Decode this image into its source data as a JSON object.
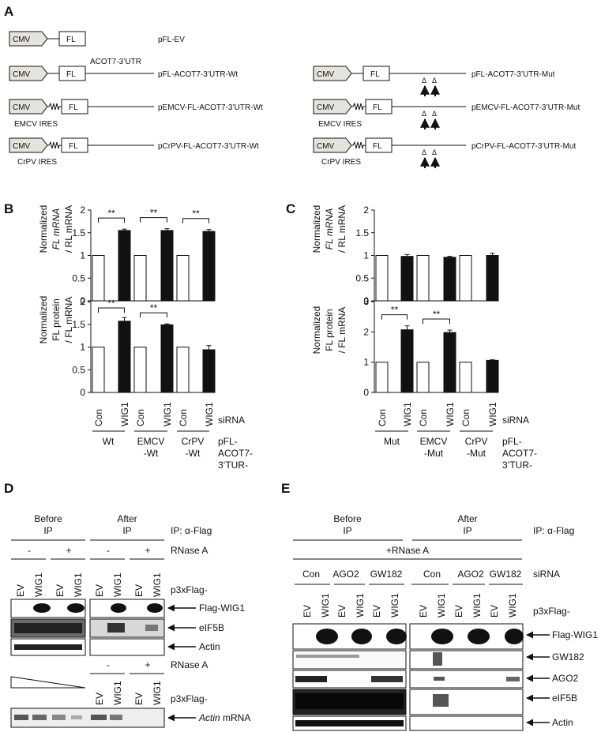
{
  "panel_labels": {
    "a": "A",
    "b": "B",
    "c": "C",
    "d": "D",
    "e": "E"
  },
  "panel_a": {
    "cmv": "CMV",
    "fl": "FL",
    "utr_label": "ACOT7-3’UTR",
    "emcv_ires": "EMCV IRES",
    "crpv_ires": "CrPV IRES",
    "arrow_label": "Δ",
    "constructs_left": [
      "pFL-EV",
      "pFL-ACOT7-3’UTR-Wt",
      "pEMCV-FL-ACOT7-3’UTR-Wt",
      "pCrPV-FL-ACOT7-3’UTR-Wt"
    ],
    "constructs_right": [
      "pFL-ACOT7-3’UTR-Mut",
      "pEMCV-FL-ACOT7-3’UTR-Mut",
      "pCrPV-FL-ACOT7-3’UTR-Mut"
    ]
  },
  "panel_b": {
    "ylabel_top": [
      "Normalized",
      "FL mRNA",
      "/ RL mRNA"
    ],
    "ylabel_bottom": [
      "Normalized",
      "FL protein",
      "/ FL mRNA"
    ],
    "sirna_label": "siRNA",
    "lanes": [
      "Con",
      "WIG1",
      "Con",
      "WIG1",
      "Con",
      "WIG1"
    ],
    "groups": [
      [
        "Wt"
      ],
      [
        "EMCV",
        "-Wt"
      ],
      [
        "CrPV",
        "-Wt"
      ]
    ],
    "construct_label": [
      "pFL-",
      "ACOT7-",
      "3’TUR-"
    ],
    "sig": "**"
  },
  "panel_c": {
    "ylabel_top": [
      "Normalized",
      "FL mRNA",
      "/ RL mRNA"
    ],
    "ylabel_bottom": [
      "Normalized",
      "FL protein",
      "/ FL mRNA"
    ],
    "sirna_label": "siRNA",
    "lanes": [
      "Con",
      "WIG1",
      "Con",
      "WIG1",
      "Con",
      "WIG1"
    ],
    "groups": [
      [
        "Mut"
      ],
      [
        "EMCV",
        "-Mut"
      ],
      [
        "CrPV",
        "-Mut"
      ]
    ],
    "construct_label": [
      "pFL-",
      "ACOT7-",
      "3’TUR-"
    ],
    "sig": "**"
  },
  "chart_data": [
    {
      "type": "bar",
      "panel": "B-top",
      "categories": [
        "Con",
        "WIG1",
        "Con",
        "WIG1",
        "Con",
        "WIG1"
      ],
      "groups": [
        "Wt",
        "EMCV-Wt",
        "CrPV-Wt"
      ],
      "values": [
        1,
        1.55,
        1,
        1.55,
        1,
        1.53
      ],
      "errors": [
        0,
        0.03,
        0,
        0.04,
        0,
        0.04
      ],
      "ylim": [
        0,
        2
      ],
      "yticks": [
        "0",
        "0.5",
        "1",
        "1.5",
        "2"
      ],
      "ylabel": "Normalized FL mRNA / RL mRNA",
      "significant_pairs": [
        0,
        1,
        2
      ]
    },
    {
      "type": "bar",
      "panel": "B-bottom",
      "categories": [
        "Con",
        "WIG1",
        "Con",
        "WIG1",
        "Con",
        "WIG1"
      ],
      "groups": [
        "Wt",
        "EMCV-Wt",
        "CrPV-Wt"
      ],
      "values": [
        1,
        1.57,
        1,
        1.49,
        1,
        0.94
      ],
      "errors": [
        0,
        0.08,
        0,
        0.02,
        0,
        0.09
      ],
      "ylim": [
        0,
        2
      ],
      "yticks": [
        "0",
        "0.5",
        "1",
        "1.5",
        "2"
      ],
      "ylabel": "Normalized FL protein / FL mRNA",
      "significant_pairs": [
        0,
        1
      ]
    },
    {
      "type": "bar",
      "panel": "C-top",
      "categories": [
        "Con",
        "WIG1",
        "Con",
        "WIG1",
        "Con",
        "WIG1"
      ],
      "groups": [
        "Mut",
        "EMCV-Mut",
        "CrPV-Mut"
      ],
      "values": [
        1,
        0.98,
        1,
        0.96,
        1,
        1.0
      ],
      "errors": [
        0,
        0.04,
        0,
        0.02,
        0,
        0.05
      ],
      "ylim": [
        0,
        2
      ],
      "yticks": [
        "0",
        "0.5",
        "1",
        "1.5",
        "2"
      ],
      "ylabel": "Normalized FL mRNA / RL mRNA",
      "significant_pairs": []
    },
    {
      "type": "bar",
      "panel": "C-bottom",
      "categories": [
        "Con",
        "WIG1",
        "Con",
        "WIG1",
        "Con",
        "WIG1"
      ],
      "groups": [
        "Mut",
        "EMCV-Mut",
        "CrPV-Mut"
      ],
      "values": [
        1,
        2.07,
        1,
        1.98,
        1,
        1.06
      ],
      "errors": [
        0,
        0.13,
        0,
        0.08,
        0,
        0.02
      ],
      "ylim": [
        0,
        3
      ],
      "yticks": [
        "0",
        "1",
        "2",
        "3"
      ],
      "ylabel": "Normalized FL protein / FL mRNA",
      "significant_pairs": [
        0,
        1
      ]
    }
  ],
  "panel_d": {
    "before": [
      "Before",
      "IP"
    ],
    "after": [
      "After",
      "IP"
    ],
    "ip_label": "IP: α-Flag",
    "rnase_label": "RNase A",
    "rnase_signs": [
      "-",
      "+",
      "-",
      "+"
    ],
    "lanes": [
      "EV",
      "WIG1",
      "EV",
      "WIG1",
      "EV",
      "WIG1",
      "EV",
      "WIG1"
    ],
    "flag_label": "p3xFlag-",
    "blots": [
      "Flag-WIG1",
      "eIF5B",
      "Actin"
    ],
    "rnase2_signs": [
      "-",
      "+"
    ],
    "lanes2": [
      "EV",
      "WIG1",
      "EV",
      "WIG1"
    ],
    "mrna_label_italic": "Actin",
    "mrna_label_rest": " mRNA"
  },
  "panel_e": {
    "before": [
      "Before",
      "IP"
    ],
    "after": [
      "After",
      "IP"
    ],
    "ip_label": "IP: α-Flag",
    "rnase_plus": "+RNase A",
    "sirna_groups": [
      "Con",
      "AGO2",
      "GW182",
      "Con",
      "AGO2",
      "GW182"
    ],
    "sirna_label": "siRNA",
    "lanes": [
      "EV",
      "WIG1",
      "EV",
      "WIG1",
      "EV",
      "WIG1",
      "EV",
      "WIG1",
      "EV",
      "WIG1",
      "EV",
      "WIG1"
    ],
    "flag_label": "p3xFlag-",
    "blots": [
      "Flag-WIG1",
      "GW182",
      "AGO2",
      "eIF5B",
      "Actin"
    ]
  }
}
